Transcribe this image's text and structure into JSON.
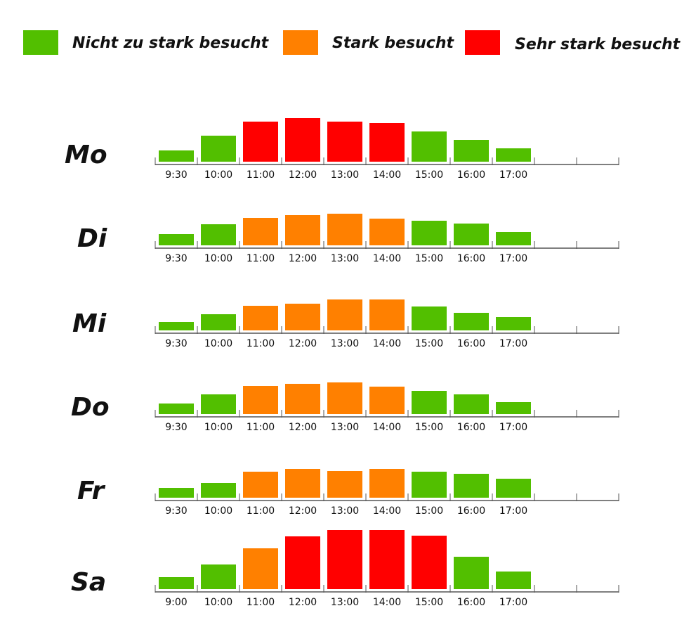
{
  "colors": {
    "green": "#52bf00",
    "orange": "#ff8000",
    "red": "#ff0000"
  },
  "legend": [
    {
      "label": "Nicht zu stark besucht",
      "color": "#52bf00"
    },
    {
      "label": "Stark besucht",
      "color": "#ff8000"
    },
    {
      "label": "Sehr stark besucht",
      "color": "#ff0000"
    }
  ],
  "chart_data": [
    {
      "type": "bar",
      "title": "Mo",
      "categories": [
        "9:30",
        "10:00",
        "11:00",
        "12:00",
        "13:00",
        "14:00",
        "15:00",
        "16:00",
        "17:00"
      ],
      "values": [
        16,
        37,
        57,
        62,
        57,
        55,
        43,
        31,
        19
      ],
      "colors": [
        "#52bf00",
        "#52bf00",
        "#ff0000",
        "#ff0000",
        "#ff0000",
        "#ff0000",
        "#52bf00",
        "#52bf00",
        "#52bf00"
      ],
      "ylim": [
        0,
        90
      ]
    },
    {
      "type": "bar",
      "title": "Di",
      "categories": [
        "9:30",
        "10:00",
        "11:00",
        "12:00",
        "13:00",
        "14:00",
        "15:00",
        "16:00",
        "17:00"
      ],
      "values": [
        16,
        30,
        39,
        43,
        45,
        38,
        35,
        31,
        19
      ],
      "colors": [
        "#52bf00",
        "#52bf00",
        "#ff8000",
        "#ff8000",
        "#ff8000",
        "#ff8000",
        "#52bf00",
        "#52bf00",
        "#52bf00"
      ],
      "ylim": [
        0,
        90
      ]
    },
    {
      "type": "bar",
      "title": "Mi",
      "categories": [
        "9:30",
        "10:00",
        "11:00",
        "12:00",
        "13:00",
        "14:00",
        "15:00",
        "16:00",
        "17:00"
      ],
      "values": [
        12,
        23,
        35,
        38,
        44,
        44,
        34,
        25,
        19
      ],
      "colors": [
        "#52bf00",
        "#52bf00",
        "#ff8000",
        "#ff8000",
        "#ff8000",
        "#ff8000",
        "#52bf00",
        "#52bf00",
        "#52bf00"
      ],
      "ylim": [
        0,
        90
      ]
    },
    {
      "type": "bar",
      "title": "Do",
      "categories": [
        "9:30",
        "10:00",
        "11:00",
        "12:00",
        "13:00",
        "14:00",
        "15:00",
        "16:00",
        "17:00"
      ],
      "values": [
        15,
        28,
        40,
        43,
        45,
        39,
        33,
        28,
        17
      ],
      "colors": [
        "#52bf00",
        "#52bf00",
        "#ff8000",
        "#ff8000",
        "#ff8000",
        "#ff8000",
        "#52bf00",
        "#52bf00",
        "#52bf00"
      ],
      "ylim": [
        0,
        90
      ]
    },
    {
      "type": "bar",
      "title": "Fr",
      "categories": [
        "9:30",
        "10:00",
        "11:00",
        "12:00",
        "13:00",
        "14:00",
        "15:00",
        "16:00",
        "17:00"
      ],
      "values": [
        14,
        21,
        37,
        41,
        38,
        41,
        37,
        34,
        27
      ],
      "colors": [
        "#52bf00",
        "#52bf00",
        "#ff8000",
        "#ff8000",
        "#ff8000",
        "#ff8000",
        "#52bf00",
        "#52bf00",
        "#52bf00"
      ],
      "ylim": [
        0,
        90
      ]
    },
    {
      "type": "bar",
      "title": "Sa",
      "categories": [
        "9:00",
        "10:00",
        "11:00",
        "12:00",
        "13:00",
        "14:00",
        "15:00",
        "16:00",
        "17:00"
      ],
      "values": [
        17,
        35,
        58,
        75,
        84,
        84,
        76,
        46,
        25
      ],
      "colors": [
        "#52bf00",
        "#52bf00",
        "#ff8000",
        "#ff0000",
        "#ff0000",
        "#ff0000",
        "#ff0000",
        "#52bf00",
        "#52bf00"
      ],
      "ylim": [
        0,
        90
      ]
    }
  ]
}
